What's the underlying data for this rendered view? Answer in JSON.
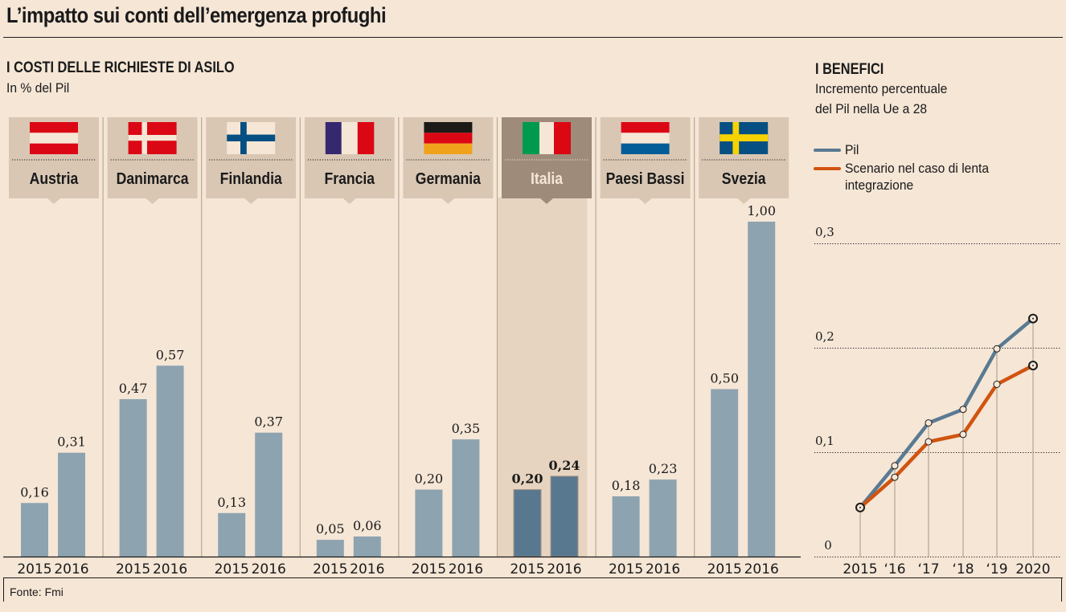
{
  "header": {
    "title": "L’impatto sui conti dell’emergenza profughi"
  },
  "left_panel": {
    "heading": "I COSTI DELLE RICHIESTE DI ASILO",
    "subheading": "In % del Pil"
  },
  "right_panel": {
    "heading": "I BENEFICI",
    "subheading_line1": "Incremento percentuale",
    "subheading_line2": "del Pil nella Ue a 28"
  },
  "footer": {
    "source": "Fonte: Fmi"
  },
  "colors": {
    "background": "#f5e6d6",
    "header_box": "#d9c7b4",
    "header_box_highlight": "#9e8b7a",
    "highlight_column": "#e6d4c0",
    "bar": "#8ea3b0",
    "bar_highlight": "#58788f",
    "separator": "#b9a894",
    "line_pil": "#5a7a92",
    "line_scenario": "#d0540f"
  },
  "chart_data": [
    {
      "type": "bar",
      "title": "I COSTI DELLE RICHIESTE DI ASILO",
      "subtitle": "In % del Pil",
      "xlabel": "",
      "ylabel": "",
      "ylim": [
        0,
        1.0
      ],
      "grid": false,
      "x": [
        "2015",
        "2016"
      ],
      "categories": [
        "Austria",
        "Danimarca",
        "Finlandia",
        "Francia",
        "Germania",
        "Italia",
        "Paesi Bassi",
        "Svezia"
      ],
      "flags": [
        "austria-flag",
        "denmark-flag",
        "finland-flag",
        "france-flag",
        "germany-flag",
        "italy-flag",
        "netherlands-flag",
        "sweden-flag"
      ],
      "highlight": "Italia",
      "series": [
        {
          "name": "2015",
          "values": [
            0.16,
            0.47,
            0.13,
            0.05,
            0.2,
            0.2,
            0.18,
            0.5
          ],
          "labels": [
            "0,16",
            "0,47",
            "0,13",
            "0,05",
            "0,20",
            "0,20",
            "0,18",
            "0,50"
          ]
        },
        {
          "name": "2016",
          "values": [
            0.31,
            0.57,
            0.37,
            0.06,
            0.35,
            0.24,
            0.23,
            1.0
          ],
          "labels": [
            "0,31",
            "0,57",
            "0,37",
            "0,06",
            "0,35",
            "0,24",
            "0,23",
            "1,00"
          ]
        }
      ]
    },
    {
      "type": "line",
      "title": "I BENEFICI",
      "subtitle": "Incremento percentuale del Pil nella Ue a 28",
      "xlabel": "",
      "ylabel": "",
      "ylim": [
        0,
        0.3
      ],
      "grid": true,
      "legend": "top-left",
      "x": [
        "2015",
        "‘16",
        "‘17",
        "‘18",
        "‘19",
        "2020"
      ],
      "yticks": [
        0,
        0.1,
        0.2,
        0.3
      ],
      "ytick_labels": [
        "0",
        "0,1",
        "0,2",
        "0,3"
      ],
      "series": [
        {
          "name": "Pil",
          "values": [
            0.047,
            0.087,
            0.128,
            0.141,
            0.199,
            0.228
          ]
        },
        {
          "name": "Scenario nel caso di lenta integrazione",
          "values": [
            0.047,
            0.076,
            0.11,
            0.117,
            0.165,
            0.183
          ]
        }
      ]
    }
  ]
}
